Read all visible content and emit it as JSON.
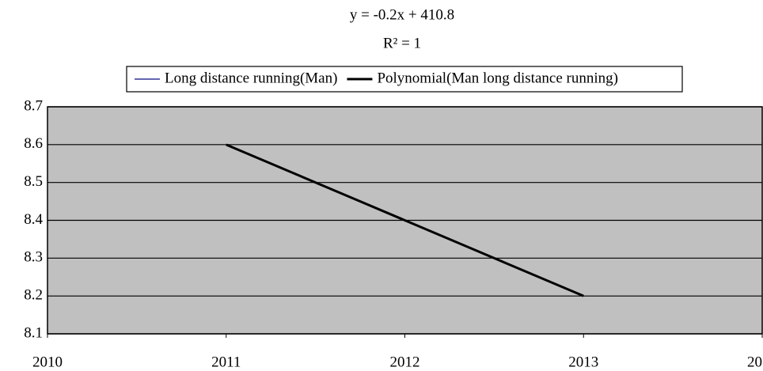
{
  "chart_data": {
    "type": "line",
    "annotations": [
      "y = -0.2x + 410.8",
      "R² = 1"
    ],
    "x": [
      2011,
      2012,
      2013
    ],
    "series": [
      {
        "name": "Long distance running(Man)",
        "color": "#333399",
        "values": [
          8.6,
          8.4,
          8.2
        ]
      },
      {
        "name": "Polynomial(Man long distance running)",
        "color": "#000000",
        "values": [
          8.6,
          8.4,
          8.2
        ]
      }
    ],
    "xlim": [
      2010,
      2014
    ],
    "xticks": [
      2010,
      2011,
      2012,
      2013,
      {
        "value": 2014,
        "label": "20"
      }
    ],
    "ylim": [
      8.1,
      8.7
    ],
    "yticks": [
      8.1,
      8.2,
      8.3,
      8.4,
      8.5,
      8.6,
      8.7
    ],
    "grid": true,
    "plot_background": "#c0c0c0",
    "legend": "top"
  }
}
